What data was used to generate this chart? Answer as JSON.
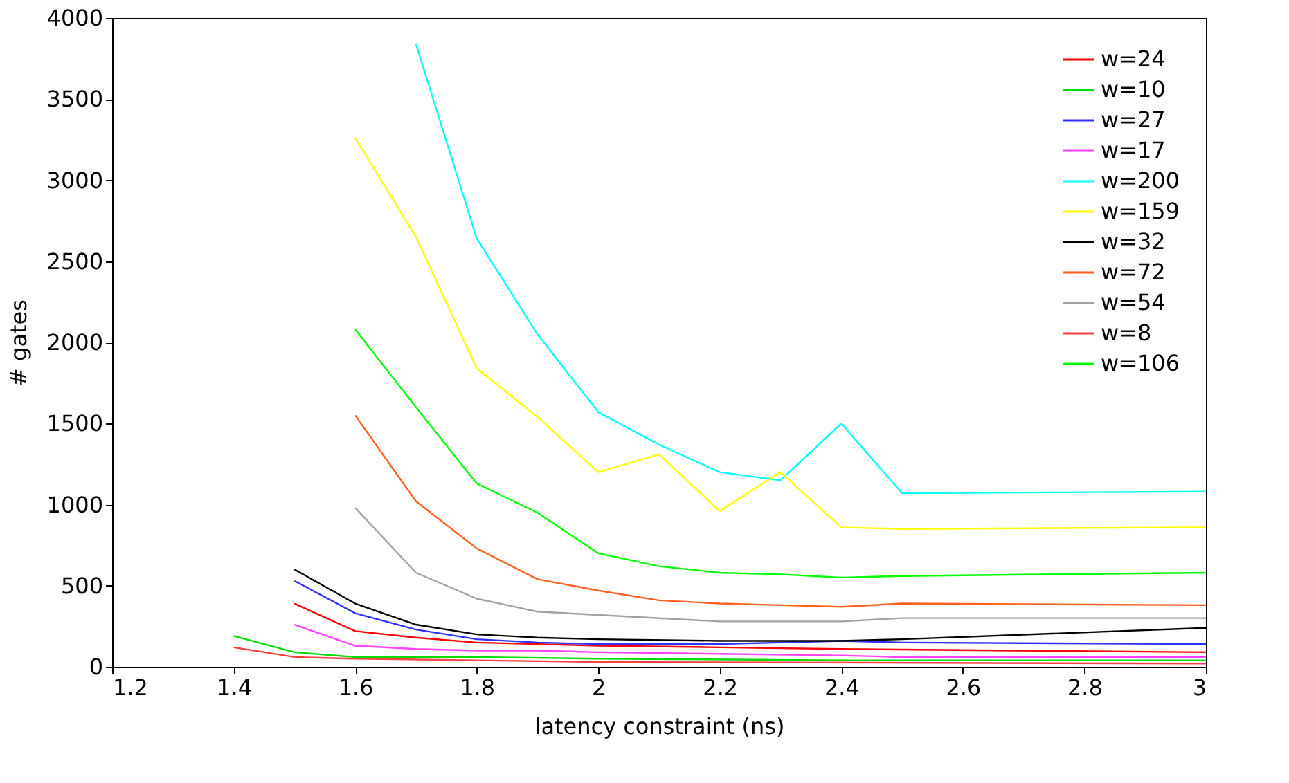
{
  "chart_data": {
    "type": "line",
    "xlabel": "latency constraint (ns)",
    "ylabel": "# gates",
    "xlim": [
      1.2,
      3
    ],
    "xticks": [
      1.2,
      1.4,
      1.6,
      1.8,
      2,
      2.2,
      2.4,
      2.6,
      2.8,
      3
    ],
    "ylim": [
      0,
      4000
    ],
    "yticks": [
      0,
      500,
      1000,
      1500,
      2000,
      2500,
      3000,
      3500,
      4000
    ],
    "grid": false,
    "legend": "top right",
    "marker": "none",
    "line_style": "solid",
    "series": [
      {
        "name": "w=24",
        "color": "#ff0000",
        "x": [
          1.5,
          1.6,
          1.7,
          1.8,
          1.9,
          2.0,
          2.2,
          2.4,
          3.0
        ],
        "values": [
          390,
          220,
          180,
          150,
          140,
          130,
          120,
          110,
          90
        ]
      },
      {
        "name": "w=10",
        "color": "#00dd00",
        "x": [
          1.4,
          1.5,
          1.6,
          1.8,
          2.0,
          2.4,
          3.0
        ],
        "values": [
          190,
          90,
          60,
          60,
          50,
          40,
          40
        ]
      },
      {
        "name": "w=27",
        "color": "#3030ff",
        "x": [
          1.5,
          1.6,
          1.7,
          1.8,
          1.9,
          2.0,
          2.2,
          2.4,
          2.5,
          3.0
        ],
        "values": [
          530,
          330,
          230,
          170,
          150,
          140,
          140,
          160,
          150,
          140
        ]
      },
      {
        "name": "w=17",
        "color": "#ff40ff",
        "x": [
          1.5,
          1.6,
          1.7,
          1.8,
          1.9,
          2.0,
          2.2,
          2.4,
          2.5,
          3.0
        ],
        "values": [
          260,
          130,
          110,
          100,
          100,
          90,
          80,
          70,
          60,
          60
        ]
      },
      {
        "name": "w=200",
        "color": "#00ffff",
        "x": [
          1.7,
          1.8,
          1.9,
          2.0,
          2.1,
          2.2,
          2.3,
          2.4,
          2.5,
          3.0
        ],
        "values": [
          3840,
          2640,
          2050,
          1570,
          1370,
          1200,
          1150,
          1500,
          1070,
          1080
        ]
      },
      {
        "name": "w=159",
        "color": "#ffff00",
        "x": [
          1.6,
          1.7,
          1.8,
          1.9,
          2.0,
          2.1,
          2.2,
          2.3,
          2.4,
          2.5,
          3.0
        ],
        "values": [
          3260,
          2650,
          1840,
          1540,
          1200,
          1310,
          960,
          1200,
          860,
          850,
          860
        ]
      },
      {
        "name": "w=32",
        "color": "#000000",
        "x": [
          1.5,
          1.6,
          1.7,
          1.8,
          1.9,
          2.0,
          2.2,
          2.4,
          2.5,
          3.0
        ],
        "values": [
          600,
          390,
          260,
          200,
          180,
          170,
          160,
          160,
          170,
          240
        ]
      },
      {
        "name": "w=72",
        "color": "#ff6020",
        "x": [
          1.6,
          1.7,
          1.8,
          1.9,
          2.0,
          2.1,
          2.2,
          2.3,
          2.4,
          2.5,
          3.0
        ],
        "values": [
          1550,
          1020,
          730,
          540,
          470,
          410,
          390,
          380,
          370,
          390,
          380
        ]
      },
      {
        "name": "w=54",
        "color": "#a0a0a0",
        "x": [
          1.6,
          1.7,
          1.8,
          1.9,
          2.0,
          2.2,
          2.4,
          2.5,
          3.0
        ],
        "values": [
          980,
          580,
          420,
          340,
          320,
          280,
          280,
          300,
          300
        ]
      },
      {
        "name": "w=8",
        "color": "#ff4040",
        "x": [
          1.4,
          1.5,
          1.6,
          1.8,
          2.0,
          3.0
        ],
        "values": [
          120,
          60,
          50,
          40,
          30,
          20
        ]
      },
      {
        "name": "w=106",
        "color": "#00ff00",
        "x": [
          1.6,
          1.7,
          1.8,
          1.9,
          2.0,
          2.1,
          2.2,
          2.3,
          2.4,
          2.5,
          3.0
        ],
        "values": [
          2080,
          1600,
          1130,
          950,
          700,
          620,
          580,
          570,
          550,
          560,
          580
        ]
      }
    ]
  }
}
